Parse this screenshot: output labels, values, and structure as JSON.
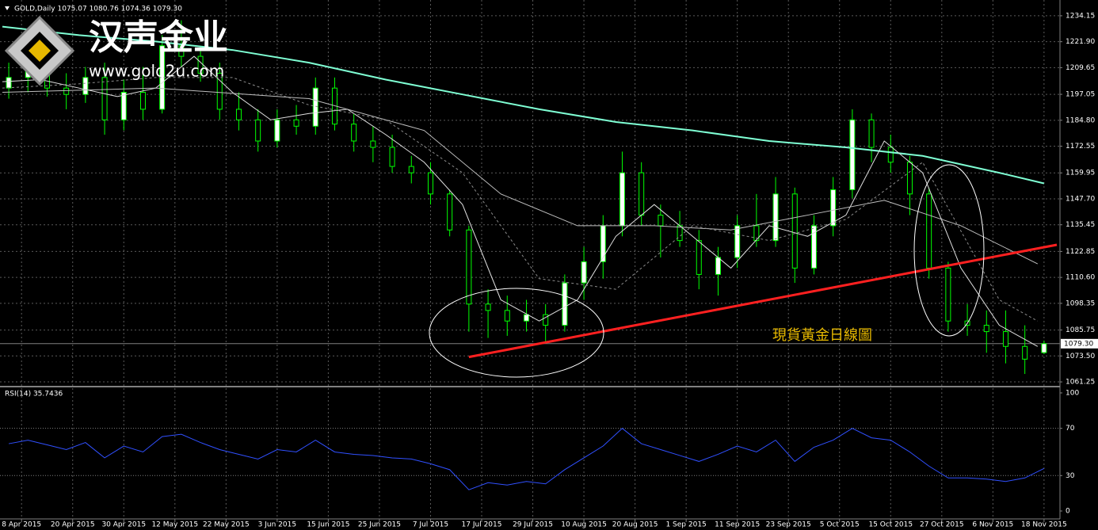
{
  "logo": {
    "name": "汉声金业",
    "url": "www.gold2u.com"
  },
  "chart_data": [
    {
      "type": "candlestick",
      "title": "GOLD,Daily 1075.07 1080.76 1074.36 1079.30",
      "annotation": "現貨黃金日線圖",
      "x": [
        1,
        4,
        7,
        10,
        13,
        16,
        19,
        22,
        25,
        28,
        31,
        34,
        37,
        40,
        43,
        46,
        49,
        52,
        55,
        58,
        61,
        64,
        67,
        70,
        73,
        76,
        79,
        82,
        85,
        88,
        91,
        94,
        97,
        100,
        103,
        106,
        109,
        112,
        115,
        118,
        121,
        124,
        127,
        130,
        133,
        136,
        139,
        142,
        145,
        148,
        151,
        154,
        157,
        160,
        163
      ],
      "open": [
        1200,
        1205,
        1208,
        1200,
        1197,
        1205,
        1185,
        1198,
        1190,
        1220,
        1215,
        1207,
        1190,
        1185,
        1175,
        1185,
        1182,
        1200,
        1183,
        1175,
        1172,
        1163,
        1160,
        1150,
        1133,
        1098,
        1095,
        1090,
        1093,
        1088,
        1108,
        1118,
        1135,
        1160,
        1140,
        1135,
        1128,
        1112,
        1120,
        1135,
        1128,
        1150,
        1115,
        1135,
        1152,
        1185,
        1172,
        1165,
        1150,
        1115,
        1090,
        1088,
        1085,
        1078,
        1075.07
      ],
      "high": [
        1212,
        1215,
        1214,
        1207,
        1210,
        1212,
        1204,
        1210,
        1225,
        1232,
        1220,
        1212,
        1198,
        1190,
        1190,
        1192,
        1205,
        1205,
        1188,
        1182,
        1178,
        1168,
        1165,
        1152,
        1135,
        1105,
        1102,
        1100,
        1098,
        1112,
        1125,
        1140,
        1170,
        1165,
        1145,
        1142,
        1133,
        1125,
        1140,
        1150,
        1158,
        1153,
        1140,
        1158,
        1190,
        1188,
        1178,
        1168,
        1153,
        1118,
        1098,
        1095,
        1095,
        1088,
        1080.76
      ],
      "low": [
        1195,
        1198,
        1196,
        1190,
        1193,
        1178,
        1180,
        1185,
        1188,
        1210,
        1203,
        1185,
        1180,
        1170,
        1172,
        1178,
        1178,
        1180,
        1170,
        1165,
        1160,
        1155,
        1145,
        1130,
        1085,
        1082,
        1083,
        1085,
        1080,
        1085,
        1100,
        1110,
        1130,
        1135,
        1120,
        1125,
        1105,
        1102,
        1115,
        1125,
        1125,
        1108,
        1112,
        1130,
        1148,
        1165,
        1160,
        1140,
        1110,
        1085,
        1083,
        1075,
        1070,
        1065,
        1074.36
      ],
      "close": [
        1205,
        1208,
        1200,
        1197,
        1205,
        1185,
        1198,
        1190,
        1220,
        1215,
        1207,
        1190,
        1185,
        1175,
        1185,
        1182,
        1200,
        1183,
        1175,
        1172,
        1163,
        1160,
        1150,
        1133,
        1098,
        1095,
        1090,
        1093,
        1088,
        1108,
        1118,
        1135,
        1160,
        1140,
        1135,
        1128,
        1112,
        1120,
        1135,
        1128,
        1150,
        1115,
        1135,
        1152,
        1185,
        1172,
        1165,
        1150,
        1115,
        1090,
        1088,
        1085,
        1078,
        1072,
        1079.3
      ],
      "color": "#00ff00",
      "overlays": [
        {
          "color": "#7fffd4",
          "x": [
            0,
            12,
            24,
            36,
            48,
            60,
            72,
            84,
            96,
            108,
            120,
            132,
            144,
            156,
            163
          ],
          "values": [
            1229,
            1225,
            1222,
            1218,
            1212,
            1204,
            1197,
            1190,
            1184,
            1180,
            1175,
            1172,
            1168,
            1160,
            1155
          ]
        },
        {
          "color": "#e0e0e0",
          "x": [
            0,
            6,
            12,
            18,
            24,
            30,
            36,
            42,
            48,
            54,
            60,
            66,
            72,
            78,
            84,
            90,
            96,
            102,
            108,
            114,
            120,
            126,
            132,
            138,
            144,
            150,
            156,
            162
          ],
          "values": [
            1203,
            1204,
            1200,
            1196,
            1200,
            1215,
            1198,
            1185,
            1188,
            1190,
            1178,
            1165,
            1145,
            1100,
            1090,
            1100,
            1130,
            1145,
            1130,
            1115,
            1135,
            1130,
            1140,
            1175,
            1160,
            1115,
            1088,
            1078
          ]
        },
        {
          "color": "#bfbfbf",
          "x": [
            0,
            24,
            48,
            66,
            78,
            90,
            102,
            114,
            126,
            138,
            150,
            162
          ],
          "values": [
            1198,
            1200,
            1195,
            1180,
            1150,
            1135,
            1135,
            1133,
            1140,
            1147,
            1135,
            1117
          ]
        },
        {
          "color": "#8c8c8c",
          "dashed": true,
          "x": [
            0,
            12,
            24,
            36,
            48,
            60,
            72,
            84,
            96,
            108,
            120,
            132,
            144,
            156,
            162
          ],
          "values": [
            1200,
            1202,
            1205,
            1205,
            1192,
            1185,
            1160,
            1110,
            1105,
            1135,
            1128,
            1138,
            1165,
            1100,
            1090
          ]
        }
      ],
      "trendline": {
        "color": "#ff2020",
        "x": [
          73,
          165
        ],
        "values": [
          1073,
          1126
        ]
      },
      "current": {
        "value": 1079.3,
        "label": "1079.30"
      },
      "xlim": [
        0,
        165
      ],
      "xticks": [
        {
          "value": 3,
          "label": "8 Apr 2015"
        },
        {
          "value": 11,
          "label": "20 Apr 2015"
        },
        {
          "value": 19,
          "label": "30 Apr 2015"
        },
        {
          "value": 27,
          "label": "12 May 2015"
        },
        {
          "value": 35,
          "label": "22 May 2015"
        },
        {
          "value": 43,
          "label": "3 Jun 2015"
        },
        {
          "value": 51,
          "label": "15 Jun 2015"
        },
        {
          "value": 59,
          "label": "25 Jun 2015"
        },
        {
          "value": 67,
          "label": "7 Jul 2015"
        },
        {
          "value": 75,
          "label": "17 Jul 2015"
        },
        {
          "value": 83,
          "label": "29 Jul 2015"
        },
        {
          "value": 91,
          "label": "10 Aug 2015"
        },
        {
          "value": 99,
          "label": "20 Aug 2015"
        },
        {
          "value": 107,
          "label": "1 Sep 2015"
        },
        {
          "value": 115,
          "label": "11 Sep 2015"
        },
        {
          "value": 123,
          "label": "23 Sep 2015"
        },
        {
          "value": 131,
          "label": "5 Oct 2015"
        },
        {
          "value": 139,
          "label": "15 Oct 2015"
        },
        {
          "value": 147,
          "label": "27 Oct 2015"
        },
        {
          "value": 155,
          "label": "6 Nov 2015"
        },
        {
          "value": 163,
          "label": "18 Nov 2015"
        }
      ],
      "ylim": [
        1059.4,
        1240.1
      ],
      "yticks": [
        1234.15,
        {
          "value": 1221.9,
          "label": "1221.90"
        },
        1209.65,
        1197.05,
        {
          "value": 1184.8,
          "label": "1184.80"
        },
        1172.55,
        1159.95,
        {
          "value": 1147.7,
          "label": "1147.70"
        },
        1135.45,
        1122.85,
        {
          "value": 1110.6,
          "label": "1110.60"
        },
        1098.35,
        1085.75,
        {
          "value": 1073.5,
          "label": "1073.50"
        },
        1061.25
      ],
      "grid": true
    },
    {
      "type": "line",
      "title": "RSI(14) 35.7436",
      "color": "#3050ff",
      "x": [
        1,
        4,
        7,
        10,
        13,
        16,
        19,
        22,
        25,
        28,
        31,
        34,
        37,
        40,
        43,
        46,
        49,
        52,
        55,
        58,
        61,
        64,
        67,
        70,
        73,
        76,
        79,
        82,
        85,
        88,
        91,
        94,
        97,
        100,
        103,
        106,
        109,
        112,
        115,
        118,
        121,
        124,
        127,
        130,
        133,
        136,
        139,
        142,
        145,
        148,
        151,
        154,
        157,
        160,
        163
      ],
      "values": [
        57,
        60,
        56,
        52,
        58,
        45,
        55,
        50,
        63,
        65,
        58,
        52,
        48,
        44,
        52,
        50,
        60,
        50,
        48,
        47,
        45,
        44,
        40,
        35,
        18,
        24,
        22,
        25,
        23,
        35,
        45,
        55,
        70,
        57,
        52,
        47,
        42,
        48,
        55,
        50,
        60,
        42,
        54,
        60,
        70,
        62,
        60,
        50,
        38,
        28,
        28,
        27,
        25,
        28,
        36
      ],
      "xlim": [
        0,
        165
      ],
      "ylim": [
        -6.7,
        104
      ],
      "yticks": [
        100,
        70,
        30,
        0
      ],
      "levels": [
        70,
        30
      ]
    }
  ]
}
